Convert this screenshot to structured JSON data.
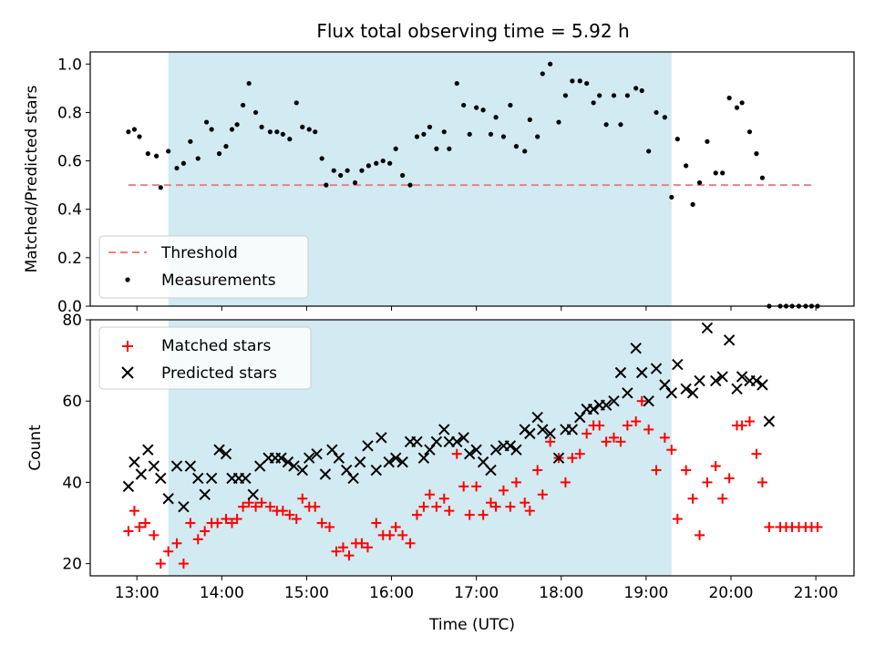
{
  "title": "Flux total observing time = 5.92 h",
  "colors": {
    "threshold": "#f08080",
    "measurements": "#000000",
    "matched": "#ff0000",
    "predicted": "#000000",
    "span": "#add8e6"
  },
  "chart_data": [
    {
      "type": "scatter",
      "ylabel": "Matched/Predicted stars",
      "ylim": [
        0,
        1.05
      ],
      "yticks": [
        "0.0",
        "0.2",
        "0.4",
        "0.6",
        "0.8",
        "1.0"
      ],
      "xlim": [
        12.45,
        21.45
      ],
      "shaded_span_hours": [
        13.37,
        19.3
      ],
      "grid": false,
      "legend": {
        "location": "lower-left",
        "entries": [
          "Threshold",
          "Measurements"
        ]
      },
      "series": [
        {
          "name": "Threshold",
          "kind": "dashed-line",
          "x": [
            12.9,
            21.0
          ],
          "y": [
            0.5,
            0.5
          ]
        },
        {
          "name": "Measurements",
          "kind": "dots",
          "x": [
            12.9,
            12.97,
            13.03,
            13.13,
            13.23,
            13.28,
            13.37,
            13.47,
            13.55,
            13.63,
            13.72,
            13.82,
            13.88,
            13.97,
            14.05,
            14.12,
            14.18,
            14.25,
            14.32,
            14.4,
            14.47,
            14.57,
            14.65,
            14.72,
            14.8,
            14.88,
            14.95,
            15.03,
            15.1,
            15.18,
            15.23,
            15.32,
            15.4,
            15.48,
            15.57,
            15.65,
            15.73,
            15.82,
            15.9,
            15.98,
            16.05,
            16.13,
            16.22,
            16.3,
            16.38,
            16.45,
            16.53,
            16.62,
            16.68,
            16.77,
            16.85,
            16.92,
            17.0,
            17.08,
            17.17,
            17.23,
            17.32,
            17.4,
            17.47,
            17.57,
            17.63,
            17.72,
            17.78,
            17.87,
            17.97,
            18.05,
            18.13,
            18.22,
            18.3,
            18.38,
            18.45,
            18.53,
            18.62,
            18.7,
            18.78,
            18.88,
            18.95,
            19.03,
            19.12,
            19.22,
            19.3,
            19.37,
            19.47,
            19.55,
            19.63,
            19.72,
            19.82,
            19.9,
            19.98,
            20.07,
            20.13,
            20.22,
            20.3,
            20.37,
            20.45,
            20.58,
            20.65,
            20.72,
            20.8,
            20.88,
            20.95,
            21.02
          ],
          "y": [
            0.72,
            0.73,
            0.7,
            0.63,
            0.62,
            0.49,
            0.64,
            0.57,
            0.59,
            0.68,
            0.61,
            0.76,
            0.73,
            0.63,
            0.66,
            0.73,
            0.75,
            0.83,
            0.92,
            0.8,
            0.74,
            0.72,
            0.72,
            0.71,
            0.69,
            0.84,
            0.74,
            0.73,
            0.72,
            0.61,
            0.5,
            0.56,
            0.54,
            0.56,
            0.51,
            0.56,
            0.58,
            0.59,
            0.6,
            0.59,
            0.65,
            0.54,
            0.5,
            0.7,
            0.71,
            0.74,
            0.65,
            0.72,
            0.65,
            0.92,
            0.83,
            0.71,
            0.82,
            0.81,
            0.71,
            0.78,
            0.7,
            0.83,
            0.66,
            0.64,
            0.77,
            0.7,
            0.96,
            1.0,
            0.76,
            0.87,
            0.93,
            0.93,
            0.92,
            0.84,
            0.87,
            0.75,
            0.87,
            0.75,
            0.87,
            0.9,
            0.89,
            0.64,
            0.8,
            0.78,
            0.45,
            0.69,
            0.58,
            0.42,
            0.51,
            0.68,
            0.55,
            0.55,
            0.86,
            0.82,
            0.84,
            0.72,
            0.63,
            0.53,
            0.0,
            0.0,
            0.0,
            0.0,
            0.0,
            0.0,
            0.0,
            0.0
          ]
        }
      ]
    },
    {
      "type": "scatter",
      "xlabel": "Time (UTC)",
      "ylabel": "Count",
      "ylim": [
        17,
        80
      ],
      "yticks": [
        "20",
        "40",
        "60",
        "80"
      ],
      "xlim": [
        12.45,
        21.45
      ],
      "xticks": [
        "13:00",
        "14:00",
        "15:00",
        "16:00",
        "17:00",
        "18:00",
        "19:00",
        "20:00",
        "21:00"
      ],
      "shaded_span_hours": [
        13.37,
        19.3
      ],
      "grid": false,
      "legend": {
        "location": "upper-left",
        "entries": [
          "Matched stars",
          "Predicted stars"
        ]
      },
      "series": [
        {
          "name": "Matched stars",
          "marker": "plus",
          "x": [
            12.9,
            12.97,
            13.03,
            13.1,
            13.2,
            13.28,
            13.37,
            13.47,
            13.55,
            13.63,
            13.72,
            13.8,
            13.88,
            13.95,
            14.05,
            14.12,
            14.18,
            14.25,
            14.32,
            14.4,
            14.47,
            14.57,
            14.65,
            14.72,
            14.8,
            14.88,
            14.95,
            15.03,
            15.1,
            15.18,
            15.27,
            15.35,
            15.43,
            15.5,
            15.58,
            15.65,
            15.72,
            15.82,
            15.9,
            15.98,
            16.05,
            16.13,
            16.22,
            16.3,
            16.38,
            16.45,
            16.53,
            16.62,
            16.68,
            16.77,
            16.85,
            16.92,
            17.0,
            17.08,
            17.17,
            17.23,
            17.32,
            17.4,
            17.47,
            17.57,
            17.63,
            17.72,
            17.78,
            17.87,
            17.97,
            18.05,
            18.13,
            18.22,
            18.3,
            18.38,
            18.45,
            18.53,
            18.62,
            18.7,
            18.78,
            18.88,
            18.95,
            19.03,
            19.12,
            19.22,
            19.3,
            19.37,
            19.47,
            19.55,
            19.63,
            19.72,
            19.82,
            19.9,
            19.98,
            20.07,
            20.13,
            20.22,
            20.3,
            20.37,
            20.45,
            20.58,
            20.65,
            20.72,
            20.8,
            20.88,
            20.95,
            21.02
          ],
          "y": [
            28,
            33,
            29,
            30,
            27,
            20,
            23,
            25,
            20,
            30,
            26,
            28,
            30,
            30,
            31,
            30,
            31,
            34,
            35,
            34,
            35,
            34,
            33,
            33,
            32,
            31,
            36,
            34,
            34,
            30,
            29,
            23,
            24,
            22,
            25,
            25,
            24,
            30,
            27,
            27,
            29,
            27,
            25,
            32,
            34,
            37,
            34,
            36,
            33,
            47,
            39,
            32,
            39,
            32,
            35,
            34,
            38,
            34,
            40,
            35,
            33,
            43,
            37,
            50,
            46,
            40,
            46,
            47,
            52,
            54,
            54,
            50,
            51,
            50,
            54,
            55,
            60,
            53,
            43,
            51,
            48,
            31,
            43,
            36,
            27,
            40,
            44,
            36,
            41,
            54,
            54,
            55,
            47,
            40,
            29,
            29,
            29,
            29,
            29,
            29,
            29,
            29
          ]
        },
        {
          "name": "Predicted stars",
          "marker": "x",
          "x": [
            12.9,
            12.97,
            13.05,
            13.13,
            13.2,
            13.28,
            13.37,
            13.47,
            13.55,
            13.63,
            13.72,
            13.8,
            13.88,
            13.97,
            14.05,
            14.12,
            14.2,
            14.28,
            14.37,
            14.45,
            14.55,
            14.63,
            14.7,
            14.78,
            14.85,
            14.95,
            15.03,
            15.12,
            15.22,
            15.3,
            15.38,
            15.47,
            15.55,
            15.63,
            15.72,
            15.82,
            15.88,
            15.97,
            16.05,
            16.13,
            16.22,
            16.3,
            16.38,
            16.45,
            16.53,
            16.62,
            16.68,
            16.77,
            16.85,
            16.92,
            17.0,
            17.08,
            17.17,
            17.23,
            17.32,
            17.4,
            17.47,
            17.57,
            17.63,
            17.72,
            17.78,
            17.87,
            17.97,
            18.05,
            18.13,
            18.22,
            18.3,
            18.38,
            18.45,
            18.53,
            18.62,
            18.7,
            18.78,
            18.88,
            18.95,
            19.03,
            19.12,
            19.22,
            19.3,
            19.37,
            19.47,
            19.55,
            19.63,
            19.72,
            19.82,
            19.9,
            19.98,
            20.07,
            20.13,
            20.22,
            20.3,
            20.37,
            20.45
          ],
          "y": [
            39,
            45,
            42,
            48,
            44,
            41,
            36,
            44,
            34,
            44,
            41,
            37,
            41,
            48,
            47,
            41,
            41,
            41,
            37,
            44,
            46,
            46,
            46,
            45,
            44,
            43,
            46,
            47,
            42,
            48,
            46,
            43,
            41,
            45,
            49,
            43,
            51,
            45,
            46,
            45,
            50,
            50,
            46,
            48,
            50,
            53,
            50,
            50,
            51,
            47,
            48,
            45,
            43,
            48,
            49,
            49,
            48,
            53,
            52,
            56,
            53,
            52,
            46,
            53,
            53,
            56,
            58,
            58,
            59,
            59,
            60,
            67,
            62,
            73,
            67,
            60,
            68,
            64,
            62,
            69,
            63,
            62,
            65,
            78,
            65,
            66,
            75,
            63,
            66,
            65,
            65,
            64,
            55
          ]
        }
      ]
    }
  ]
}
